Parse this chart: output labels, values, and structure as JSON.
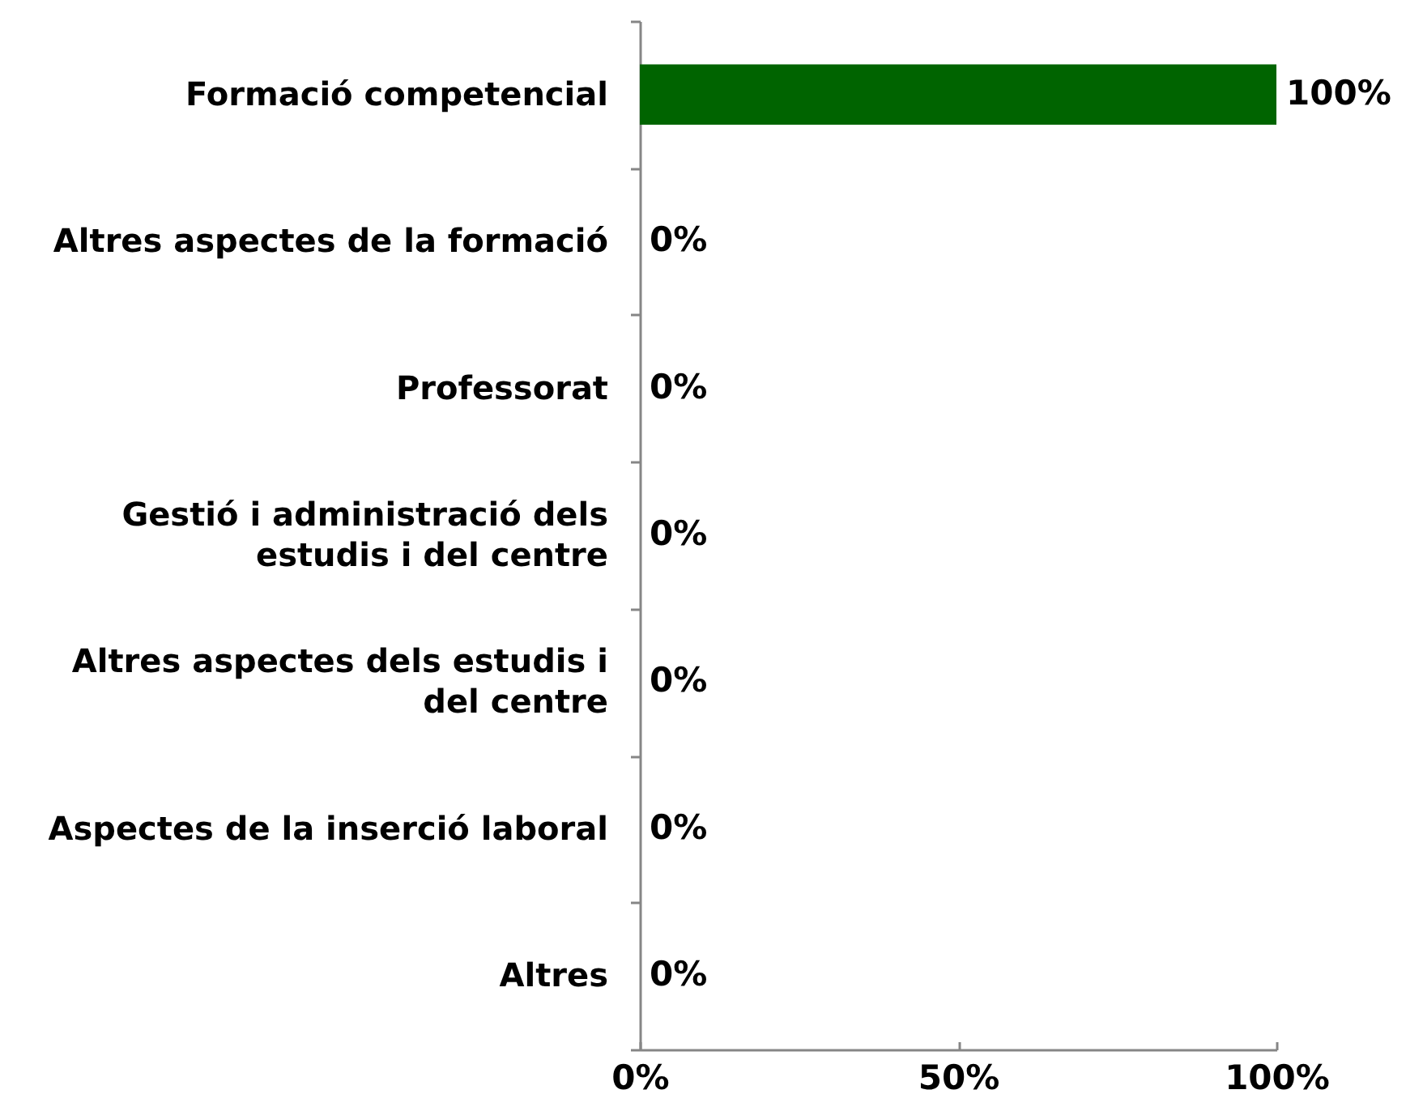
{
  "chart_data": {
    "type": "bar",
    "orientation": "horizontal",
    "categories": [
      "Formació competencial",
      "Altres aspectes de la formació",
      "Professorat",
      "Gestió i administració dels estudis i del centre",
      "Altres aspectes dels estudis i del centre",
      "Aspectes de la inserció laboral",
      "Altres"
    ],
    "values": [
      100,
      0,
      0,
      0,
      0,
      0,
      0
    ],
    "color": "#006400",
    "value_labels": [
      "100%",
      "0%",
      "0%",
      "0%",
      "0%",
      "0%",
      "0%"
    ],
    "xlim": [
      0,
      100
    ],
    "xticks": [
      {
        "value": 0,
        "label": "0%"
      },
      {
        "value": 50,
        "label": "50%"
      },
      {
        "value": 100,
        "label": "100%"
      }
    ]
  }
}
